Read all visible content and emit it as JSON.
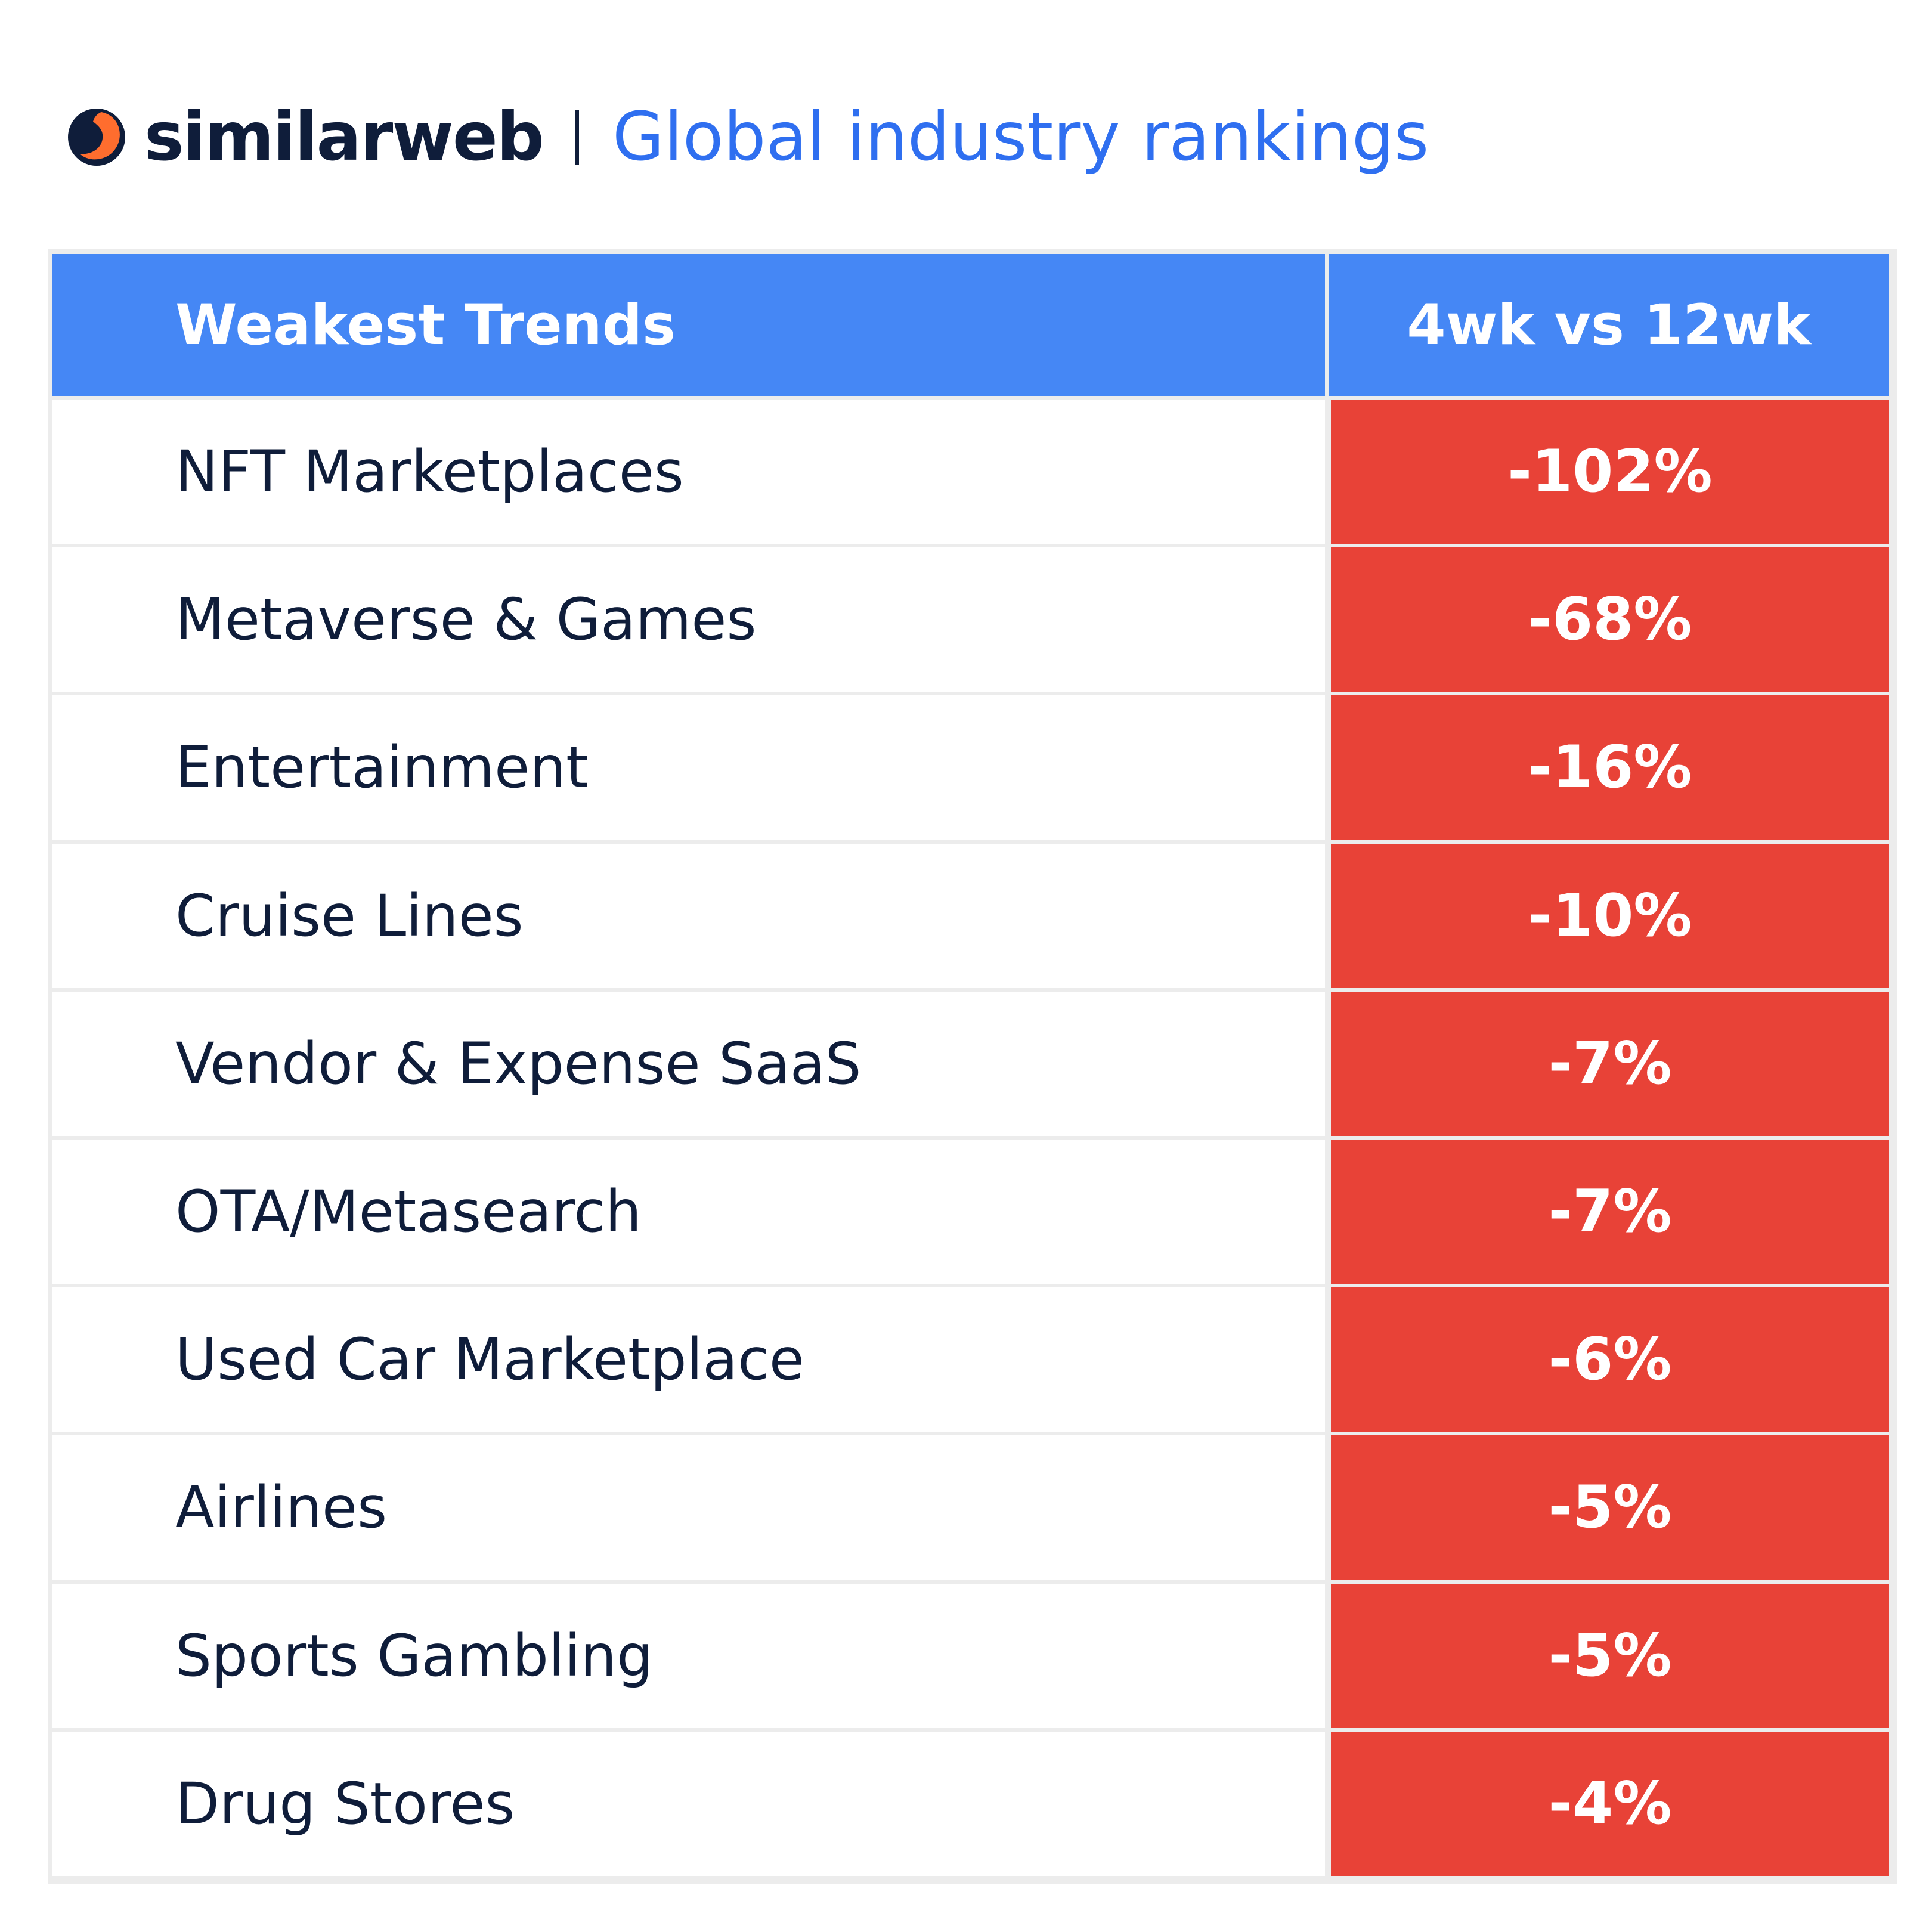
{
  "header": {
    "brand": "similarweb",
    "title": "Global industry rankings"
  },
  "colors": {
    "brand_navy": "#0f1d3a",
    "brand_orange": "#ff6d2e",
    "title_blue": "#2f6ff0",
    "header_fill": "#4587f5",
    "negative_fill": "#e84237"
  },
  "chart_data": {
    "type": "table",
    "columns": [
      "Weakest Trends",
      "4wk vs 12wk"
    ],
    "rows": [
      {
        "industry": "NFT Marketplaces",
        "change": "-102%"
      },
      {
        "industry": "Metaverse & Games",
        "change": "-68%"
      },
      {
        "industry": "Entertainment",
        "change": "-16%"
      },
      {
        "industry": "Cruise Lines",
        "change": "-10%"
      },
      {
        "industry": "Vendor & Expense SaaS",
        "change": "-7%"
      },
      {
        "industry": "OTA/Metasearch",
        "change": "-7%"
      },
      {
        "industry": "Used Car Marketplace",
        "change": "-6%"
      },
      {
        "industry": "Airlines",
        "change": "-5%"
      },
      {
        "industry": "Sports Gambling",
        "change": "-5%"
      },
      {
        "industry": "Drug Stores",
        "change": "-4%"
      }
    ]
  }
}
